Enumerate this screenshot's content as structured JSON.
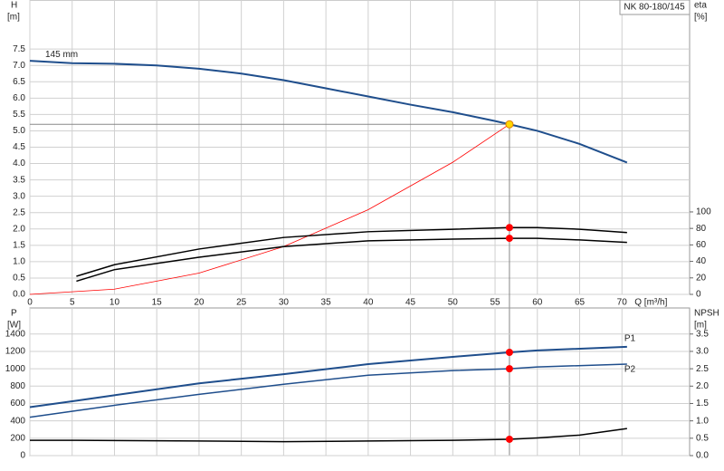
{
  "chart_data": [
    {
      "type": "line",
      "xlabel": "Q [m³/h]",
      "ylabel": "H",
      "yunit": "[m]",
      "y2label": "eta",
      "y2unit": "[%]",
      "model": "NK 80-180/145",
      "xlim": [
        0,
        78
      ],
      "xticks": [
        0,
        5,
        10,
        15,
        20,
        25,
        30,
        35,
        40,
        45,
        50,
        55,
        60,
        65,
        70
      ],
      "ylim": [
        0,
        9
      ],
      "yticks": [
        {
          "value": 0,
          "label": "0.0"
        },
        {
          "value": 0.5,
          "label": "0.5"
        },
        {
          "value": 1,
          "label": "1.0"
        },
        {
          "value": 1.5,
          "label": "1.5"
        },
        {
          "value": 2,
          "label": "2.0"
        },
        {
          "value": 2.5,
          "label": "2.5"
        },
        {
          "value": 3,
          "label": "3.0"
        },
        {
          "value": 3.5,
          "label": "3.5"
        },
        {
          "value": 4,
          "label": "4.0"
        },
        {
          "value": 4.5,
          "label": "4.5"
        },
        {
          "value": 5,
          "label": "5.0"
        },
        {
          "value": 5.5,
          "label": "5.5"
        },
        {
          "value": 6,
          "label": "6.0"
        },
        {
          "value": 6.5,
          "label": "6.5"
        },
        {
          "value": 7,
          "label": "7.0"
        },
        {
          "value": 7.5,
          "label": "7.5"
        }
      ],
      "y2lim": [
        0,
        357
      ],
      "y2ticks": [
        0,
        20,
        40,
        60,
        80,
        100
      ],
      "grid": true,
      "series": [
        {
          "name": "145 mm",
          "color": "#1f4e8c",
          "x": [
            0,
            5,
            10,
            15,
            20,
            25,
            30,
            35,
            40,
            45,
            50,
            55,
            56.7,
            60,
            65,
            70.6
          ],
          "values": [
            7.14,
            7.07,
            7.05,
            7.0,
            6.9,
            6.75,
            6.55,
            6.3,
            6.05,
            5.8,
            5.57,
            5.3,
            5.2,
            5.0,
            4.6,
            4.03
          ]
        },
        {
          "color": "#ff0000",
          "x": [
            0,
            10,
            20,
            30,
            40,
            50,
            56.7
          ],
          "values": [
            0,
            0.16,
            0.65,
            1.46,
            2.59,
            4.04,
            5.2
          ]
        },
        {
          "color": "#000000",
          "axis": "y2",
          "x": [
            5.5,
            10,
            20,
            30,
            40,
            50,
            56.7,
            60,
            65,
            70.6
          ],
          "values": [
            22,
            36,
            55,
            69,
            76,
            79,
            81,
            81,
            79,
            75
          ]
        },
        {
          "color": "#000000",
          "axis": "y2",
          "x": [
            5.5,
            10,
            20,
            30,
            40,
            50,
            56.7,
            60,
            65,
            70.6
          ],
          "values": [
            16,
            30,
            45,
            58,
            65,
            67,
            68,
            68,
            66,
            63
          ]
        }
      ],
      "markers": [
        {
          "x": 56.7,
          "value": 5.2,
          "color": "#ffd700"
        },
        {
          "x": 56.7,
          "value": 81,
          "axis": "y2",
          "color": "#ff0000"
        },
        {
          "x": 56.7,
          "value": 68,
          "axis": "y2",
          "color": "#ff0000"
        }
      ]
    },
    {
      "type": "line",
      "ylabel": "P",
      "yunit": "[W]",
      "y2label": "NPSH",
      "y2unit": "[m]",
      "xlim": [
        0,
        78
      ],
      "xticks": [
        0,
        5,
        10,
        15,
        20,
        25,
        30,
        35,
        40,
        45,
        50,
        55,
        60,
        65,
        70
      ],
      "ylim": [
        0,
        1700
      ],
      "yticks": [
        0,
        200,
        400,
        600,
        800,
        1000,
        1200,
        1400
      ],
      "y2lim": [
        0,
        4.25
      ],
      "y2ticks": [
        {
          "value": 0,
          "label": "0.0"
        },
        {
          "value": 0.5,
          "label": "0.5"
        },
        {
          "value": 1,
          "label": "1.0"
        },
        {
          "value": 1.5,
          "label": "1.5"
        },
        {
          "value": 2,
          "label": "2.0"
        },
        {
          "value": 2.5,
          "label": "2.5"
        },
        {
          "value": 3,
          "label": "3.0"
        },
        {
          "value": 3.5,
          "label": "3.5"
        }
      ],
      "grid": true,
      "series": [
        {
          "name": "P1",
          "color": "#1f4e8c",
          "x": [
            0,
            5.5,
            10,
            20,
            30,
            40,
            50,
            56.7,
            60,
            70.6
          ],
          "values": [
            558,
            632,
            695,
            832,
            937,
            1053,
            1137,
            1189,
            1211,
            1253
          ]
        },
        {
          "name": "P2",
          "color": "#1f4e8c",
          "x": [
            0,
            10,
            20,
            30,
            40,
            50,
            56.7,
            60,
            70.6
          ],
          "values": [
            442,
            579,
            705,
            821,
            926,
            979,
            1000,
            1021,
            1053
          ]
        },
        {
          "color": "#000000",
          "axis": "y2",
          "x": [
            0,
            5.5,
            20,
            30,
            40,
            50,
            56.7,
            60,
            65,
            70.6
          ],
          "values": [
            0.44,
            0.44,
            0.42,
            0.4,
            0.42,
            0.44,
            0.47,
            0.51,
            0.59,
            0.78
          ]
        }
      ],
      "markers": [
        {
          "x": 56.7,
          "value": 1189,
          "color": "#ff0000"
        },
        {
          "x": 56.7,
          "value": 1000,
          "color": "#ff0000"
        },
        {
          "x": 56.7,
          "value": 0.47,
          "axis": "y2",
          "color": "#ff0000"
        }
      ]
    }
  ]
}
